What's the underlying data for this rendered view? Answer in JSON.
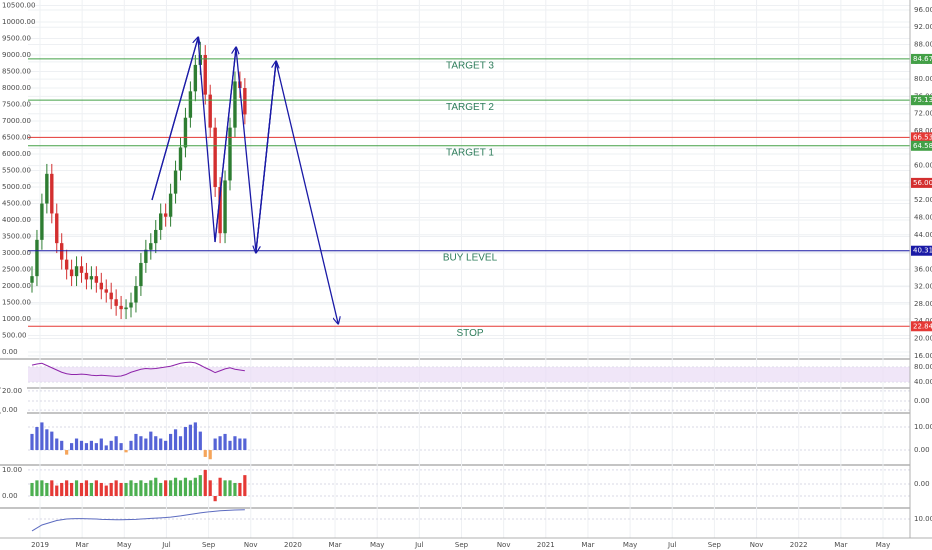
{
  "chart_data": [
    {
      "type": "candlestick",
      "open": [
        2100,
        2300,
        3400,
        4500,
        5400,
        4200,
        3300,
        2800,
        2500,
        2300,
        2600,
        2400,
        2200,
        2300,
        2100,
        1900,
        1800,
        1600,
        1400,
        1300,
        1350,
        1500,
        2000,
        2700,
        3100,
        3300,
        3700,
        4200,
        4100,
        4800,
        5500,
        6200,
        7100,
        7900,
        8700,
        9000,
        7800,
        6800,
        5000,
        3600,
        5200,
        6800,
        8200,
        8000
      ],
      "high": [
        2600,
        3700,
        4800,
        5700,
        5700,
        4500,
        3600,
        3100,
        2800,
        2900,
        2900,
        2700,
        2600,
        2600,
        2400,
        2200,
        2100,
        1900,
        1700,
        1600,
        1800,
        2300,
        3000,
        3400,
        3600,
        4000,
        4500,
        4500,
        5100,
        5800,
        6500,
        7400,
        8200,
        9000,
        9400,
        9300,
        8100,
        7100,
        5300,
        5500,
        7100,
        8500,
        8500,
        8300
      ],
      "low": [
        1800,
        2000,
        3100,
        4200,
        3900,
        3000,
        2500,
        2200,
        2000,
        2000,
        2100,
        1900,
        1900,
        1800,
        1600,
        1500,
        1300,
        1100,
        1000,
        1000,
        1050,
        1200,
        1700,
        2400,
        2800,
        3000,
        3400,
        3800,
        3800,
        4500,
        5200,
        5900,
        6800,
        7600,
        8400,
        7500,
        6500,
        4700,
        3300,
        3300,
        4900,
        6500,
        7700,
        6900
      ],
      "close": [
        2300,
        3400,
        4500,
        5400,
        4200,
        3300,
        2800,
        2500,
        2300,
        2600,
        2400,
        2200,
        2300,
        2100,
        1900,
        1800,
        1600,
        1400,
        1300,
        1350,
        1500,
        2000,
        2700,
        3100,
        3300,
        3700,
        4200,
        4100,
        4800,
        5500,
        6200,
        7100,
        7900,
        8700,
        9000,
        7800,
        6800,
        5000,
        3600,
        5200,
        6800,
        8200,
        8000,
        7200
      ],
      "up_color": "#2e7d32",
      "down_color": "#d32f2f",
      "ylim": [
        -180,
        10667
      ],
      "yticks": [
        {
          "value": 0,
          "label": "0.00"
        },
        {
          "value": 500,
          "label": "500.00"
        },
        {
          "value": 1000,
          "label": "1000.00"
        },
        {
          "value": 1500,
          "label": "1500.00"
        },
        {
          "value": 2000,
          "label": "2000.00"
        },
        {
          "value": 2500,
          "label": "2500.00"
        },
        {
          "value": 3000,
          "label": "3000.00"
        },
        {
          "value": 3500,
          "label": "3500.00"
        },
        {
          "value": 4000,
          "label": "4000.00"
        },
        {
          "value": 4500,
          "label": "4500.00"
        },
        {
          "value": 5000,
          "label": "5000.00"
        },
        {
          "value": 5500,
          "label": "5500.00"
        },
        {
          "value": 6000,
          "label": "6000.00"
        },
        {
          "value": 6500,
          "label": "6500.00"
        },
        {
          "value": 7000,
          "label": "7000.00"
        },
        {
          "value": 7500,
          "label": "7500.00"
        },
        {
          "value": 8000,
          "label": "8000.00"
        },
        {
          "value": 8500,
          "label": "8500.00"
        },
        {
          "value": 9000,
          "label": "9000.00"
        },
        {
          "value": 9500,
          "label": "9500.00"
        },
        {
          "value": 10000,
          "label": "10000.00"
        },
        {
          "value": 10500,
          "label": "10500.00"
        }
      ],
      "y2lim": [
        15.5,
        98.3
      ],
      "y2ticks": [
        {
          "value": 16,
          "label": "16.00"
        },
        {
          "value": 20,
          "label": "20.00"
        },
        {
          "value": 24,
          "label": "24.00"
        },
        {
          "value": 28,
          "label": "28.00"
        },
        {
          "value": 32,
          "label": "32.00"
        },
        {
          "value": 36,
          "label": "36.00"
        },
        {
          "value": 40,
          "label": "40.00"
        },
        {
          "value": 44,
          "label": "44.00"
        },
        {
          "value": 48,
          "label": "48.00"
        },
        {
          "value": 52,
          "label": "52.00"
        },
        {
          "value": 56,
          "label": "56.00"
        },
        {
          "value": 60,
          "label": "60.00"
        },
        {
          "value": 64,
          "label": "64.00"
        },
        {
          "value": 68,
          "label": "68.00"
        },
        {
          "value": 72,
          "label": "72.00"
        },
        {
          "value": 76,
          "label": "76.00"
        },
        {
          "value": 80,
          "label": "80.00"
        },
        {
          "value": 84,
          "label": "84.00"
        },
        {
          "value": 88,
          "label": "88.00"
        },
        {
          "value": 92,
          "label": "92.00"
        },
        {
          "value": 96,
          "label": "96.00"
        }
      ],
      "levels": [
        {
          "name": "TARGET 3",
          "value": 84.67,
          "color": "#43a047"
        },
        {
          "name": "TARGET 2",
          "value": 75.13,
          "color": "#43a047"
        },
        {
          "value": 66.53,
          "color": "#e53935"
        },
        {
          "name": "TARGET 1",
          "value": 64.58,
          "color": "#43a047"
        },
        {
          "name": "BUY LEVEL",
          "value": 40.31,
          "color": "#1a1aa6"
        },
        {
          "name": "STOP",
          "value": 22.84,
          "color": "#e53935"
        }
      ],
      "last_price": {
        "value": 56,
        "label": "56.00",
        "color": "#d32f2f"
      },
      "x_labels": [
        "2019",
        "Mar",
        "May",
        "Jul",
        "Sep",
        "Nov",
        "2020",
        "Mar",
        "May",
        "Jul",
        "Sep",
        "Nov",
        "2021",
        "Mar",
        "May",
        "Jul",
        "Sep",
        "Nov",
        "2022",
        "Mar",
        "May"
      ],
      "grid": true
    },
    {
      "type": "line",
      "values": [
        85,
        88,
        90,
        84,
        78,
        72,
        66,
        62,
        60,
        60,
        61,
        60,
        58,
        57,
        58,
        57,
        56,
        55,
        56,
        60,
        66,
        70,
        74,
        76,
        75,
        76,
        78,
        80,
        82,
        86,
        90,
        92,
        93,
        91,
        85,
        78,
        72,
        65,
        70,
        75,
        78,
        74,
        72,
        70
      ],
      "color": "#8e24aa",
      "band": true,
      "y2lim": [
        24,
        98.7
      ],
      "y2ticks": [
        {
          "value": 80,
          "label": "80.00"
        },
        {
          "value": 40,
          "label": "40.00"
        }
      ]
    },
    {
      "type": "axis",
      "ylim": [
        -3,
        22
      ],
      "yticks": [
        {
          "value": 20,
          "label": "20.00"
        },
        {
          "value": 0,
          "label": "0.00"
        }
      ],
      "y2lim": [
        -12,
        12
      ],
      "y2ticks": [
        {
          "value": 0,
          "label": "0.00"
        }
      ]
    },
    {
      "type": "bar",
      "values": [
        7,
        10,
        12,
        9,
        8,
        5,
        4,
        -2,
        3,
        5,
        4,
        3,
        4,
        3,
        5,
        2,
        4,
        6,
        3,
        -1,
        4,
        7,
        6,
        5,
        8,
        6,
        5,
        4,
        7,
        9,
        6,
        10,
        11,
        12,
        8,
        -3,
        -4,
        5,
        6,
        7,
        4,
        6,
        5,
        5
      ],
      "color": "#5563d6",
      "negative_color": "#f5a55a",
      "y2lim": [
        -6.5,
        15.65
      ],
      "y2ticks": [
        {
          "value": 10,
          "label": "10.00"
        },
        {
          "value": 0,
          "label": "0.00"
        }
      ]
    },
    {
      "type": "bar",
      "values": [
        5,
        6,
        6,
        5,
        6,
        4,
        5,
        6,
        5,
        6,
        5,
        6,
        5,
        6,
        5,
        4,
        5,
        6,
        5,
        5,
        6,
        5,
        6,
        5,
        6,
        7,
        5,
        6,
        6,
        7,
        6,
        7,
        6,
        7,
        8,
        10,
        6,
        -2,
        7,
        6,
        6,
        5,
        5,
        8
      ],
      "up_color": "#4caf50",
      "down_color": "#e53935",
      "ylim": [
        -4.6,
        11.5
      ],
      "yticks": [
        {
          "value": 10,
          "label": "10.00"
        },
        {
          "value": 0,
          "label": "0.00"
        }
      ],
      "y2lim": [
        -10,
        7.5
      ],
      "y2ticks": [
        {
          "value": 0,
          "label": "0.00"
        }
      ]
    },
    {
      "type": "line",
      "values": [
        2,
        4,
        6,
        7,
        8,
        9,
        9.5,
        10,
        10.2,
        10.3,
        10.3,
        10.2,
        10.1,
        10,
        9.8,
        9.7,
        9.6,
        9.5,
        9.5,
        9.6,
        9.7,
        9.8,
        10,
        10.2,
        10.4,
        10.6,
        10.8,
        11,
        11.3,
        11.7,
        12.1,
        12.6,
        13.1,
        13.6,
        14.1,
        14.5,
        14.9,
        15.2,
        15.5,
        15.7,
        15.9,
        16,
        16.1,
        16.2
      ],
      "color": "#5c6bc0",
      "y2lim": [
        -2.7,
        16.7
      ],
      "y2ticks": [
        {
          "value": 10,
          "label": "10.00"
        }
      ]
    }
  ]
}
